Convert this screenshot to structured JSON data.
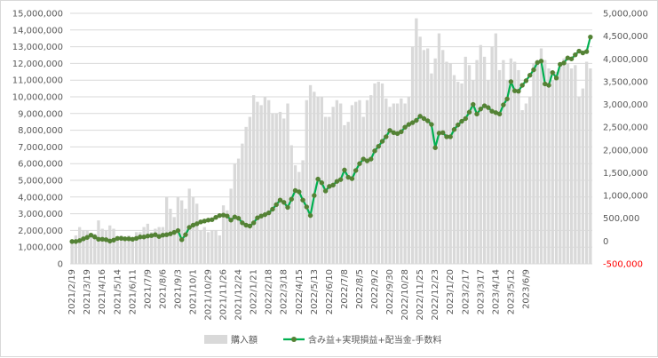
{
  "chart_data": {
    "type": "bar+line",
    "left_axis": {
      "min": 0,
      "max": 15000000,
      "step": 1000000,
      "tick_labels": [
        "0",
        "1,000,000",
        "2,000,000",
        "3,000,000",
        "4,000,000",
        "5,000,000",
        "6,000,000",
        "7,000,000",
        "8,000,000",
        "9,000,000",
        "10,000,000",
        "11,000,000",
        "12,000,000",
        "13,000,000",
        "14,000,000",
        "15,000,000"
      ]
    },
    "right_axis": {
      "min": -500000,
      "max": 5000000,
      "step": 500000,
      "tick_labels": [
        "-500,000",
        "0",
        "500,000",
        "1,000,000",
        "1,500,000",
        "2,000,000",
        "2,500,000",
        "3,000,000",
        "3,500,000",
        "4,000,000",
        "4,500,000",
        "5,000,000"
      ],
      "negative_color": "#ff0000"
    },
    "x_labels": [
      "2021/2/19",
      "2021/3/19",
      "2021/4/16",
      "2021/5/14",
      "2021/6/11",
      "2021/7/9",
      "2021/8/6",
      "2021/9/3",
      "2021/10/1",
      "2021/10/29",
      "2021/11/26",
      "2021/12/24",
      "2022/1/21",
      "2022/2/18",
      "2022/3/18",
      "2022/4/15",
      "2022/5/13",
      "2022/6/10",
      "2022/7/8",
      "2022/8/5",
      "2022/9/2",
      "2022/9/30",
      "2022/10/28",
      "2022/11/25",
      "2022/12/23",
      "2023/1/20",
      "2023/2/17",
      "2023/3/17",
      "2023/4/14",
      "2023/5/12",
      "2023/6/9"
    ],
    "points_per_label": 4,
    "grid": true,
    "legend_position": "bottom",
    "series": [
      {
        "name": "購入額",
        "type": "bar",
        "axis": "left",
        "color": "#d9d9d9",
        "values": [
          1300000,
          1700000,
          2200000,
          2000000,
          2000000,
          1700000,
          1800000,
          2600000,
          2100000,
          2000000,
          2300000,
          2100000,
          1600000,
          1700000,
          1600000,
          1700000,
          1600000,
          1900000,
          1900000,
          2200000,
          2400000,
          1900000,
          2100000,
          2200000,
          2200000,
          4000000,
          3300000,
          2800000,
          4000000,
          3800000,
          3300000,
          4500000,
          4000000,
          3600000,
          2000000,
          2200000,
          1900000,
          2000000,
          2000000,
          1700000,
          3500000,
          3200000,
          4500000,
          6000000,
          6300000,
          7200000,
          8200000,
          8800000,
          10100000,
          9700000,
          9500000,
          10000000,
          9800000,
          9000000,
          9000000,
          9100000,
          8700000,
          9600000,
          7100000,
          5900000,
          5500000,
          6200000,
          9800000,
          10700000,
          10300000,
          10000000,
          10000000,
          8800000,
          8800000,
          9400000,
          9800000,
          9600000,
          8300000,
          8500000,
          9500000,
          9700000,
          9800000,
          8800000,
          9800000,
          10100000,
          10800000,
          10900000,
          10800000,
          9900000,
          9400000,
          9600000,
          9600000,
          9900000,
          9600000,
          10000000,
          13000000,
          14700000,
          13600000,
          12800000,
          12900000,
          11400000,
          12300000,
          13800000,
          12800000,
          12100000,
          12000000,
          11300000,
          10900000,
          10800000,
          12400000,
          11900000,
          11000000,
          12200000,
          13100000,
          12400000,
          11000000,
          13000000,
          13800000,
          11600000,
          12200000,
          11000000,
          12300000,
          12100000,
          11600000,
          9200000,
          9600000,
          10000000,
          12000000,
          12200000,
          12900000,
          12200000,
          11700000,
          11000000,
          11500000,
          11900000,
          12300000,
          12000000,
          11700000,
          11900000,
          10000000,
          10500000,
          12100000,
          11700000
        ]
      },
      {
        "name": "含み益+実現損益+配当金-手数料",
        "type": "line",
        "axis": "right",
        "color": "#00b050",
        "marker_color": "#548235",
        "values": [
          -10000,
          -10000,
          10000,
          50000,
          80000,
          130000,
          90000,
          40000,
          40000,
          30000,
          0,
          20000,
          60000,
          60000,
          50000,
          50000,
          40000,
          60000,
          90000,
          90000,
          110000,
          120000,
          140000,
          100000,
          130000,
          140000,
          160000,
          190000,
          230000,
          30000,
          140000,
          300000,
          350000,
          380000,
          420000,
          440000,
          460000,
          470000,
          520000,
          560000,
          570000,
          550000,
          460000,
          530000,
          500000,
          400000,
          350000,
          330000,
          400000,
          510000,
          550000,
          580000,
          620000,
          700000,
          800000,
          900000,
          850000,
          740000,
          920000,
          1110000,
          1080000,
          900000,
          750000,
          560000,
          1000000,
          1360000,
          1280000,
          1100000,
          1200000,
          1230000,
          1310000,
          1350000,
          1560000,
          1400000,
          1370000,
          1550000,
          1700000,
          1800000,
          1760000,
          1800000,
          1980000,
          2080000,
          2190000,
          2290000,
          2430000,
          2380000,
          2360000,
          2400000,
          2500000,
          2560000,
          2600000,
          2650000,
          2740000,
          2690000,
          2640000,
          2560000,
          2050000,
          2370000,
          2380000,
          2290000,
          2290000,
          2450000,
          2550000,
          2630000,
          2690000,
          2830000,
          3000000,
          2790000,
          2900000,
          2970000,
          2930000,
          2850000,
          2820000,
          2790000,
          2990000,
          3120000,
          3500000,
          3300000,
          3290000,
          3420000,
          3520000,
          3640000,
          3760000,
          3920000,
          3950000,
          3450000,
          3420000,
          3700000,
          3580000,
          3880000,
          3910000,
          4020000,
          4000000,
          4090000,
          4170000,
          4130000,
          4160000,
          4480000
        ]
      }
    ]
  }
}
